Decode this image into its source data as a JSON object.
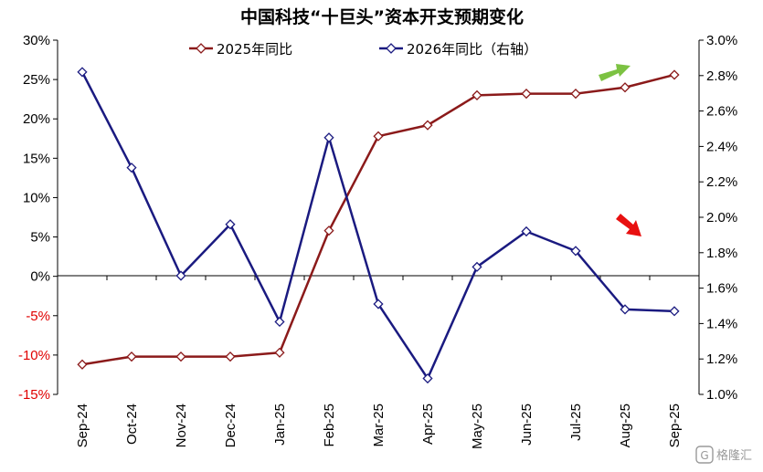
{
  "chart_data": {
    "type": "line",
    "title": "中国科技“十巨头”资本开支预期变化",
    "categories": [
      "Sep-24",
      "Oct-24",
      "Nov-24",
      "Dec-24",
      "Jan-25",
      "Feb-25",
      "Mar-25",
      "Apr-25",
      "May-25",
      "Jun-25",
      "Jul-25",
      "Aug-25",
      "Sep-25"
    ],
    "left_axis": {
      "ylim": [
        -15,
        30
      ],
      "ticks": [
        "30%",
        "25%",
        "20%",
        "15%",
        "10%",
        "5%",
        "0%",
        "-5%",
        "-10%",
        "-15%"
      ],
      "tick_values": [
        30,
        25,
        20,
        15,
        10,
        5,
        0,
        -5,
        -10,
        -15
      ],
      "negative_color": "#e00000"
    },
    "right_axis": {
      "ylim": [
        1.0,
        3.0
      ],
      "ticks": [
        "3.0%",
        "2.8%",
        "2.6%",
        "2.4%",
        "2.2%",
        "2.0%",
        "1.8%",
        "1.6%",
        "1.4%",
        "1.2%",
        "1.0%"
      ],
      "tick_values": [
        3.0,
        2.8,
        2.6,
        2.4,
        2.2,
        2.0,
        1.8,
        1.6,
        1.4,
        1.2,
        1.0
      ]
    },
    "series": [
      {
        "name": "2025年同比",
        "axis": "left",
        "color": "#8b1a1a",
        "values": [
          -11.2,
          -10.2,
          -10.2,
          -10.2,
          -9.7,
          5.8,
          17.8,
          19.2,
          23.0,
          23.2,
          23.2,
          24.0,
          25.6
        ]
      },
      {
        "name": "2026年同比（右轴）",
        "axis": "right",
        "color": "#1a1a80",
        "values": [
          2.82,
          2.28,
          1.67,
          1.96,
          1.41,
          2.45,
          1.51,
          1.09,
          1.72,
          1.92,
          1.81,
          1.48,
          1.47
        ]
      }
    ],
    "legend": "top-center",
    "grid": false,
    "annotations": [
      {
        "name": "green-up-arrow",
        "color": "#7cc242"
      },
      {
        "name": "red-down-arrow",
        "color": "#e81010"
      }
    ]
  },
  "watermark": {
    "text": "格隆汇"
  }
}
